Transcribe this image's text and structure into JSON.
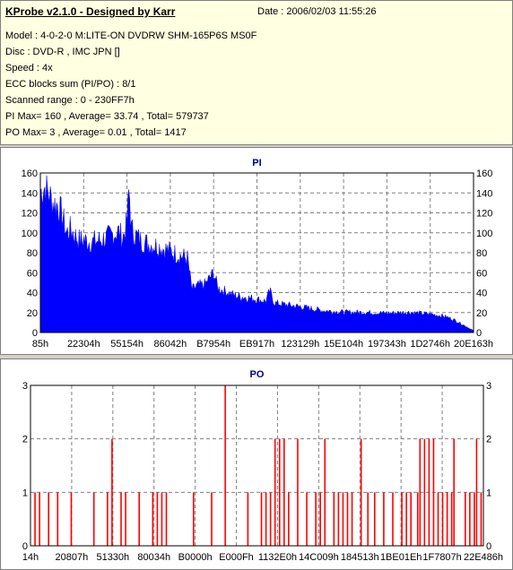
{
  "header": {
    "title": "KProbe v2.1.0 - Designed by Karr",
    "date": "Date : 2006/02/03 11:55:26",
    "lines": [
      "Model : 4-0-2-0 M:LITE-ON DVDRW SHM-165P6S MS0F",
      "Disc : DVD-R , IMC JPN []",
      "Speed : 4x",
      "ECC blocks sum (PI/PO) : 8/1",
      "Scanned range : 0 - 230FF7h",
      "PI Max= 160 , Average= 33.74 , Total= 579737",
      "PO Max= 3 , Average= 0.01 , Total= 1417"
    ]
  },
  "chart_data": [
    {
      "type": "area",
      "title": "PI",
      "ylim": [
        0,
        160
      ],
      "yticks": [
        0,
        20,
        40,
        60,
        80,
        100,
        120,
        140,
        160
      ],
      "xticks": [
        "85h",
        "22304h",
        "55154h",
        "86042h",
        "B7954h",
        "EB917h",
        "123129h",
        "15E104h",
        "197343h",
        "1D2746h",
        "20E163h"
      ],
      "color": "#0000ff",
      "envelope": [
        [
          0.0,
          152
        ],
        [
          0.01,
          158
        ],
        [
          0.02,
          150
        ],
        [
          0.03,
          140
        ],
        [
          0.04,
          138
        ],
        [
          0.05,
          128
        ],
        [
          0.06,
          108
        ],
        [
          0.07,
          112
        ],
        [
          0.08,
          105
        ],
        [
          0.09,
          100
        ],
        [
          0.1,
          100
        ],
        [
          0.12,
          98
        ],
        [
          0.14,
          100
        ],
        [
          0.16,
          104
        ],
        [
          0.18,
          110
        ],
        [
          0.19,
          102
        ],
        [
          0.2,
          118
        ],
        [
          0.205,
          158
        ],
        [
          0.21,
          112
        ],
        [
          0.23,
          100
        ],
        [
          0.25,
          96
        ],
        [
          0.27,
          94
        ],
        [
          0.28,
          92
        ],
        [
          0.3,
          88
        ],
        [
          0.34,
          80
        ],
        [
          0.35,
          46
        ],
        [
          0.36,
          50
        ],
        [
          0.38,
          52
        ],
        [
          0.4,
          65
        ],
        [
          0.41,
          48
        ],
        [
          0.43,
          44
        ],
        [
          0.45,
          40
        ],
        [
          0.5,
          36
        ],
        [
          0.52,
          34
        ],
        [
          0.53,
          45
        ],
        [
          0.54,
          32
        ],
        [
          0.57,
          30
        ],
        [
          0.6,
          28
        ],
        [
          0.65,
          24
        ],
        [
          0.7,
          22
        ],
        [
          0.75,
          22
        ],
        [
          0.8,
          21
        ],
        [
          0.85,
          22
        ],
        [
          0.9,
          20
        ],
        [
          0.93,
          18
        ],
        [
          0.95,
          15
        ],
        [
          0.97,
          10
        ],
        [
          0.985,
          6
        ],
        [
          1.0,
          2
        ]
      ]
    },
    {
      "type": "bar",
      "title": "PO",
      "ylim": [
        0,
        3
      ],
      "yticks": [
        0,
        1,
        2,
        3
      ],
      "xticks": [
        "14h",
        "20807h",
        "51330h",
        "80034h",
        "B0000h",
        "E000Fh",
        "1132E0h",
        "14C009h",
        "184513h",
        "1BE01Eh",
        "1F7807h",
        "22E486h"
      ],
      "color": "#ff0000",
      "spikes": [
        [
          0.01,
          1
        ],
        [
          0.02,
          1
        ],
        [
          0.04,
          1
        ],
        [
          0.06,
          1
        ],
        [
          0.09,
          1
        ],
        [
          0.14,
          1
        ],
        [
          0.17,
          1
        ],
        [
          0.18,
          2
        ],
        [
          0.2,
          1
        ],
        [
          0.21,
          1
        ],
        [
          0.24,
          1
        ],
        [
          0.27,
          1
        ],
        [
          0.28,
          1
        ],
        [
          0.29,
          1
        ],
        [
          0.3,
          1
        ],
        [
          0.36,
          1
        ],
        [
          0.4,
          1
        ],
        [
          0.43,
          3
        ],
        [
          0.48,
          1
        ],
        [
          0.51,
          1
        ],
        [
          0.52,
          1
        ],
        [
          0.53,
          1
        ],
        [
          0.54,
          2
        ],
        [
          0.55,
          2
        ],
        [
          0.56,
          2
        ],
        [
          0.57,
          1
        ],
        [
          0.59,
          2
        ],
        [
          0.61,
          1
        ],
        [
          0.63,
          1
        ],
        [
          0.64,
          1
        ],
        [
          0.65,
          2
        ],
        [
          0.67,
          1
        ],
        [
          0.68,
          1
        ],
        [
          0.69,
          1
        ],
        [
          0.7,
          1
        ],
        [
          0.71,
          1
        ],
        [
          0.73,
          2
        ],
        [
          0.745,
          1
        ],
        [
          0.76,
          1
        ],
        [
          0.78,
          1
        ],
        [
          0.8,
          1
        ],
        [
          0.82,
          1
        ],
        [
          0.83,
          1
        ],
        [
          0.84,
          1
        ],
        [
          0.855,
          1
        ],
        [
          0.86,
          2
        ],
        [
          0.87,
          2
        ],
        [
          0.88,
          2
        ],
        [
          0.89,
          2
        ],
        [
          0.9,
          1
        ],
        [
          0.91,
          1
        ],
        [
          0.92,
          1
        ],
        [
          0.93,
          1
        ],
        [
          0.935,
          2
        ],
        [
          0.96,
          1
        ],
        [
          0.97,
          1
        ],
        [
          0.98,
          1
        ],
        [
          0.985,
          2
        ],
        [
          0.995,
          1
        ]
      ]
    }
  ]
}
